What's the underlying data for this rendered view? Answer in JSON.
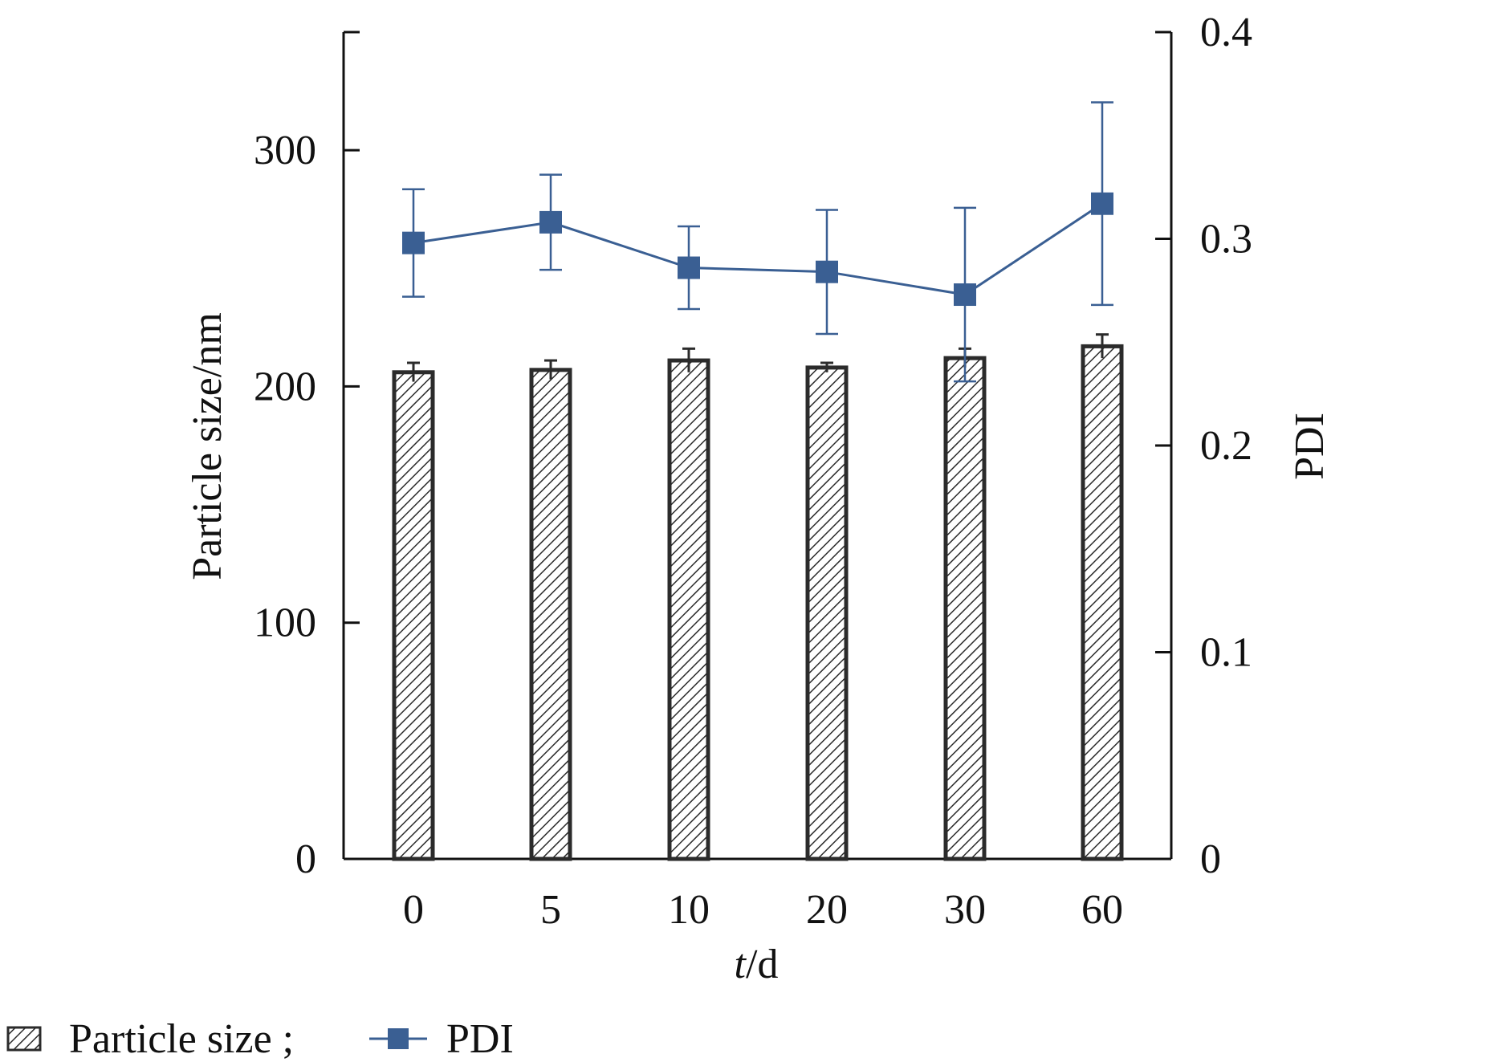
{
  "chart_data": {
    "type": "bar",
    "categories": [
      "0",
      "5",
      "10",
      "20",
      "30",
      "60"
    ],
    "series": [
      {
        "name": "Particle size",
        "axis": "left",
        "kind": "bar",
        "values": [
          206,
          207,
          211,
          208,
          212,
          217
        ],
        "errors": [
          4,
          4,
          5,
          2,
          4,
          5
        ]
      },
      {
        "name": "PDI",
        "axis": "right",
        "kind": "line",
        "values": [
          0.298,
          0.308,
          0.286,
          0.284,
          0.273,
          0.317
        ],
        "errors": [
          0.026,
          0.023,
          0.02,
          0.03,
          0.042,
          0.049
        ]
      }
    ],
    "xlabel_italic": "t",
    "xlabel_unit": "/d",
    "ylabel": "Particle size/nm",
    "y2label": "PDI",
    "ylim": [
      0,
      350
    ],
    "y2lim": [
      0,
      0.4
    ],
    "yticks": [
      "0",
      "100",
      "200",
      "300"
    ],
    "y2ticks": [
      "0",
      "0.1",
      "0.2",
      "0.3",
      "0.4"
    ],
    "legend": {
      "position": "bottom-left",
      "items": [
        "Particle size ;",
        "PDI"
      ]
    },
    "colors": {
      "line": "#3a5f93",
      "marker": "#3a5f93",
      "bar_border": "#2b2b2b",
      "hatch": "#2b2b2b",
      "axis": "#111111"
    },
    "grid": false
  }
}
